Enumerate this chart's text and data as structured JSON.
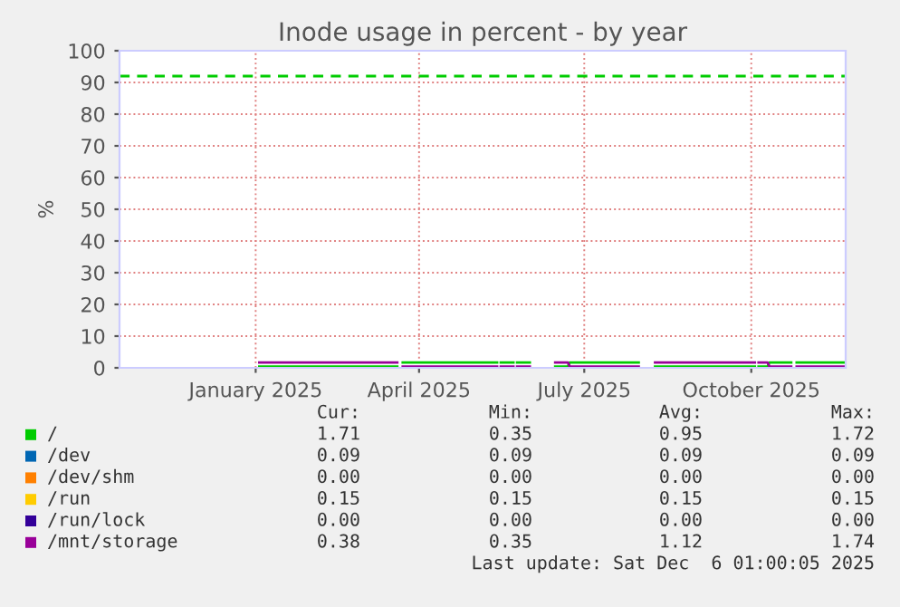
{
  "chart_data": {
    "type": "line",
    "title": "Inode usage in percent - by year",
    "ylabel": "%",
    "x": [
      "2025-01-17",
      "2025-04-03",
      "2025-04-04",
      "2025-04-06",
      "2025-05-28",
      "2025-05-29",
      "2025-05-30",
      "2025-06-06",
      "2025-06-07",
      "2025-06-08",
      "2025-06-15",
      "2025-06-20",
      "2025-06-29",
      "2025-07-06",
      "2025-07-07",
      "2025-08-14",
      "2025-08-18",
      "2025-08-23",
      "2025-10-17",
      "2025-10-18",
      "2025-10-19",
      "2025-10-24",
      "2025-10-25",
      "2025-11-06",
      "2025-11-07",
      "2025-11-09",
      "2025-12-05"
    ],
    "series": [
      {
        "name": "/",
        "color": "#00cc00",
        "values": [
          0.4,
          0.4,
          null,
          1.7,
          1.7,
          null,
          1.7,
          1.7,
          null,
          1.7,
          1.7,
          null,
          0.4,
          0.4,
          1.7,
          1.7,
          null,
          0.4,
          0.4,
          null,
          0.4,
          0.4,
          1.7,
          1.7,
          null,
          1.7,
          1.7
        ]
      },
      {
        "name": "/dev",
        "color": "#0066b3",
        "values": [
          null,
          null,
          null,
          null,
          null,
          null,
          null,
          null,
          null,
          null,
          null,
          null,
          null,
          null,
          null,
          null,
          null,
          null,
          null,
          null,
          null,
          null,
          null,
          null,
          null,
          null,
          null
        ]
      },
      {
        "name": "/dev/shm",
        "color": "#ff8000",
        "values": [
          null,
          null,
          null,
          null,
          null,
          null,
          null,
          null,
          null,
          null,
          null,
          null,
          null,
          null,
          null,
          null,
          null,
          null,
          null,
          null,
          null,
          null,
          null,
          null,
          null,
          null,
          null
        ]
      },
      {
        "name": "/run",
        "color": "#ffcc00",
        "values": [
          null,
          null,
          null,
          null,
          null,
          null,
          null,
          null,
          null,
          null,
          null,
          null,
          null,
          null,
          null,
          null,
          null,
          null,
          null,
          null,
          null,
          null,
          null,
          null,
          null,
          null,
          null
        ]
      },
      {
        "name": "/run/lock",
        "color": "#330099",
        "values": [
          null,
          null,
          null,
          null,
          null,
          null,
          null,
          null,
          null,
          null,
          null,
          null,
          null,
          null,
          null,
          null,
          null,
          null,
          null,
          null,
          null,
          null,
          null,
          null,
          null,
          null,
          null
        ]
      },
      {
        "name": "/mnt/storage",
        "color": "#990099",
        "values": [
          1.7,
          1.7,
          null,
          0.4,
          0.4,
          null,
          0.4,
          0.4,
          null,
          0.4,
          0.4,
          null,
          1.7,
          1.7,
          0.4,
          0.4,
          null,
          1.7,
          1.7,
          null,
          1.7,
          1.7,
          0.4,
          0.4,
          null,
          0.4,
          0.4
        ]
      }
    ],
    "xlim": [
      "2024-11-01",
      "2025-12-06"
    ],
    "xticks": [
      {
        "value": "2025-01-15",
        "label": "January 2025"
      },
      {
        "value": "2025-04-15",
        "label": "April 2025"
      },
      {
        "value": "2025-07-15",
        "label": "July 2025"
      },
      {
        "value": "2025-10-15",
        "label": "October 2025"
      }
    ],
    "ylim": [
      0,
      100
    ],
    "yticks": [
      0,
      10,
      20,
      30,
      40,
      50,
      60,
      70,
      80,
      90,
      100
    ],
    "ref_lines": [
      {
        "axis": "y",
        "value": 92,
        "label": null,
        "color": "#00cc00",
        "line_style": "dashed"
      }
    ],
    "grid": true,
    "legend": "bottom",
    "marker": "none",
    "line_style": "solid",
    "annotations": [
      "Cur:",
      "Min:",
      "Avg:",
      "Max:",
      "1.71",
      "0.35",
      "0.95",
      "1.72",
      "0.09",
      "0.09",
      "0.09",
      "0.09",
      "0.00",
      "0.00",
      "0.00",
      "0.00",
      "0.15",
      "0.15",
      "0.15",
      "0.15",
      "0.00",
      "0.00",
      "0.00",
      "0.00",
      "0.38",
      "0.35",
      "1.12",
      "1.74",
      "Last update: Sat Dec  6 01:00:05 2025"
    ]
  }
}
